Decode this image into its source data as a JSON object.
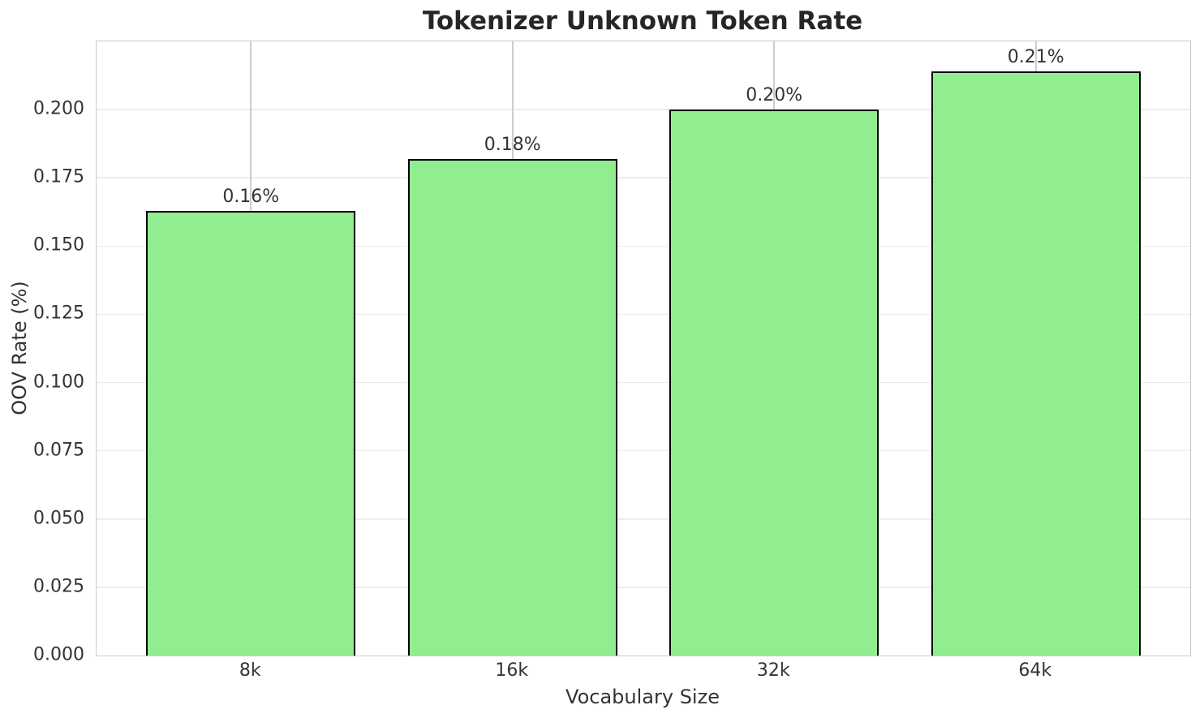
{
  "chart_data": {
    "type": "bar",
    "title": "Tokenizer Unknown Token Rate",
    "xlabel": "Vocabulary Size",
    "ylabel": "OOV Rate (%)",
    "categories": [
      "8k",
      "16k",
      "32k",
      "64k"
    ],
    "values": [
      0.163,
      0.182,
      0.2,
      0.214
    ],
    "bar_labels": [
      "0.16%",
      "0.18%",
      "0.20%",
      "0.21%"
    ],
    "ylim": [
      0,
      0.225
    ],
    "yticks": [
      0.0,
      0.025,
      0.05,
      0.075,
      0.1,
      0.125,
      0.15,
      0.175,
      0.2
    ],
    "ytick_labels": [
      "0.000",
      "0.025",
      "0.050",
      "0.075",
      "0.100",
      "0.125",
      "0.150",
      "0.175",
      "0.200"
    ],
    "grid": true,
    "legend": "none",
    "bar_color": "#90EE90",
    "bar_edge_color": "#000000",
    "hgrid_color": "#ececec",
    "vgrid_color": "#cdcdcd",
    "spine_color": "#c8c8c8",
    "text_color": "#333333",
    "title_color": "#262626"
  }
}
